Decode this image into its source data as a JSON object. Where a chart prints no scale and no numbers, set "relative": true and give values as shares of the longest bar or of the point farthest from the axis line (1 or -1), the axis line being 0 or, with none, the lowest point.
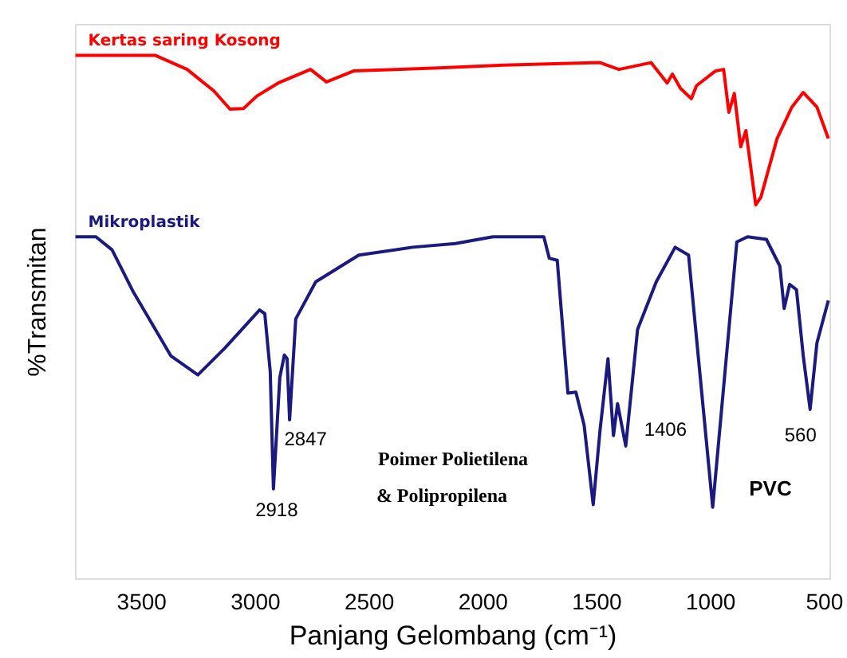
{
  "chart_data": {
    "type": "line",
    "relative": true,
    "xlabel": "Panjang Gelombang (cm⁻¹)",
    "ylabel": "%Transmitan",
    "xlim": [
      3790,
      475
    ],
    "xticks": [
      3500,
      3000,
      2500,
      2000,
      1500,
      1000,
      500
    ],
    "tick_labels": "x",
    "grid": false,
    "marker": "none",
    "line_style": "solid",
    "series": [
      {
        "name": "Kertas saring Kosong",
        "color": "#ff0000",
        "x": [
          3788,
          3438,
          3297,
          3180,
          3109,
          3050,
          2991,
          2897,
          2755,
          2685,
          2566,
          2190,
          1907,
          1483,
          1400,
          1259,
          1188,
          1165,
          1130,
          1082,
          1059,
          976,
          940,
          917,
          893,
          865,
          842,
          799,
          776,
          705,
          640,
          590,
          530,
          480
        ],
        "values": [
          1.0,
          1.0,
          0.973,
          0.932,
          0.897,
          0.898,
          0.922,
          0.947,
          0.973,
          0.949,
          0.97,
          0.976,
          0.981,
          0.986,
          0.973,
          0.986,
          0.947,
          0.964,
          0.937,
          0.917,
          0.942,
          0.97,
          0.973,
          0.891,
          0.927,
          0.825,
          0.856,
          0.714,
          0.729,
          0.841,
          0.901,
          0.929,
          0.901,
          0.841
        ]
      },
      {
        "name": "Mikroplastik",
        "color": "#1a1a80",
        "x": [
          3788,
          3698,
          3627,
          3533,
          3368,
          3250,
          3132,
          2979,
          2956,
          2932,
          2918,
          2890,
          2870,
          2858,
          2847,
          2820,
          2732,
          2543,
          2307,
          2119,
          1954,
          1730,
          1706,
          1671,
          1624,
          1589,
          1553,
          1513,
          1483,
          1448,
          1424,
          1406,
          1370,
          1318,
          1236,
          1153,
          1094,
          988,
          882,
          835,
          752,
          693,
          674,
          650,
          620,
          590,
          560,
          530,
          480
        ],
        "values": [
          0.653,
          0.653,
          0.628,
          0.547,
          0.425,
          0.389,
          0.44,
          0.513,
          0.506,
          0.395,
          0.171,
          0.384,
          0.427,
          0.42,
          0.303,
          0.496,
          0.567,
          0.618,
          0.633,
          0.64,
          0.653,
          0.653,
          0.612,
          0.608,
          0.354,
          0.356,
          0.293,
          0.141,
          0.283,
          0.42,
          0.273,
          0.334,
          0.253,
          0.476,
          0.567,
          0.633,
          0.618,
          0.136,
          0.643,
          0.653,
          0.648,
          0.597,
          0.516,
          0.562,
          0.552,
          0.425,
          0.323,
          0.45,
          0.531
        ]
      }
    ],
    "annotations": [
      {
        "text": "2847",
        "x": 2847,
        "y": 0.303
      },
      {
        "text": "2918",
        "x": 2918,
        "y": 0.171
      },
      "Poimer Polietilena",
      "& Polipropilena",
      {
        "text": "1406",
        "x": 1406,
        "y": 0.334
      },
      {
        "text": "560",
        "x": 560,
        "y": 0.323
      },
      "PVC"
    ]
  }
}
